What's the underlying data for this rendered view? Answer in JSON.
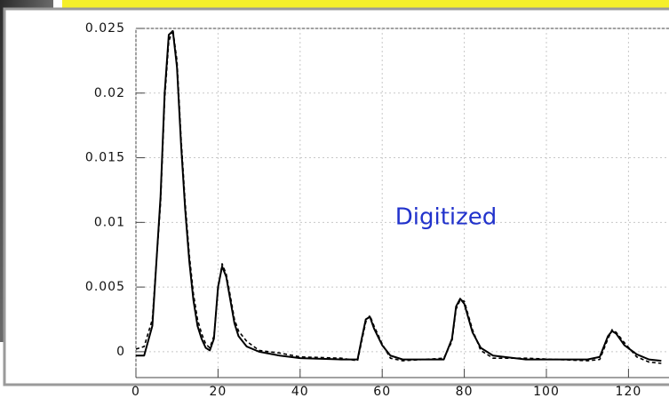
{
  "chart_data": {
    "type": "line",
    "annotation": "Digitized",
    "annotation_color": "#2233cc",
    "grid": true,
    "xlim": [
      0,
      128
    ],
    "ylim": [
      -0.002,
      0.025
    ],
    "xticks": [
      0,
      20,
      40,
      60,
      80,
      100,
      120
    ],
    "yticks": [
      0,
      0.005,
      0.01,
      0.015,
      0.02,
      0.025
    ],
    "x": [
      0,
      2,
      4,
      6,
      7,
      8,
      9,
      10,
      11,
      12,
      13,
      14,
      15,
      16,
      17,
      18,
      19,
      20,
      21,
      22,
      23,
      24,
      25,
      27,
      30,
      35,
      40,
      50,
      54,
      55,
      56,
      57,
      58,
      60,
      62,
      65,
      75,
      77,
      78,
      79,
      80,
      82,
      84,
      87,
      95,
      110,
      113,
      115,
      116,
      117,
      119,
      122,
      125,
      128
    ],
    "series": [
      {
        "color": "#000000",
        "style": "solid",
        "values": [
          -0.0003,
          -0.0003,
          0.002,
          0.012,
          0.02,
          0.0245,
          0.0248,
          0.022,
          0.016,
          0.011,
          0.007,
          0.004,
          0.002,
          0.001,
          0.0003,
          0.0001,
          0.001,
          0.005,
          0.0066,
          0.0058,
          0.004,
          0.0022,
          0.0012,
          0.0004,
          0,
          -0.0003,
          -0.0005,
          -0.0006,
          -0.0006,
          0.001,
          0.0025,
          0.0027,
          0.0018,
          0.0005,
          -0.0003,
          -0.0006,
          -0.0006,
          0.001,
          0.0035,
          0.0041,
          0.0037,
          0.0015,
          0.0003,
          -0.0003,
          -0.0006,
          -0.0006,
          -0.0004,
          0.0012,
          0.0016,
          0.0014,
          0.0005,
          -0.0002,
          -0.0006,
          -0.0007
        ]
      },
      {
        "color": "#000000",
        "style": "dashed",
        "values": [
          0.0002,
          0.0004,
          0.0025,
          0.0115,
          0.0195,
          0.024,
          0.0249,
          0.0225,
          0.0165,
          0.0115,
          0.0075,
          0.0045,
          0.0025,
          0.0014,
          0.0006,
          0.0003,
          0.0012,
          0.0048,
          0.0068,
          0.006,
          0.0043,
          0.0025,
          0.0016,
          0.0008,
          0.0001,
          -0.0001,
          -0.0004,
          -0.0005,
          -0.0007,
          0.0008,
          0.0023,
          0.0028,
          0.002,
          0.0006,
          -0.0005,
          -0.0007,
          -0.0005,
          0.0008,
          0.0033,
          0.004,
          0.0039,
          0.0017,
          0.0001,
          -0.0005,
          -0.0005,
          -0.0007,
          -0.0006,
          0.001,
          0.0017,
          0.0015,
          0.0007,
          -0.0004,
          -0.0008,
          -0.0009
        ]
      }
    ]
  }
}
